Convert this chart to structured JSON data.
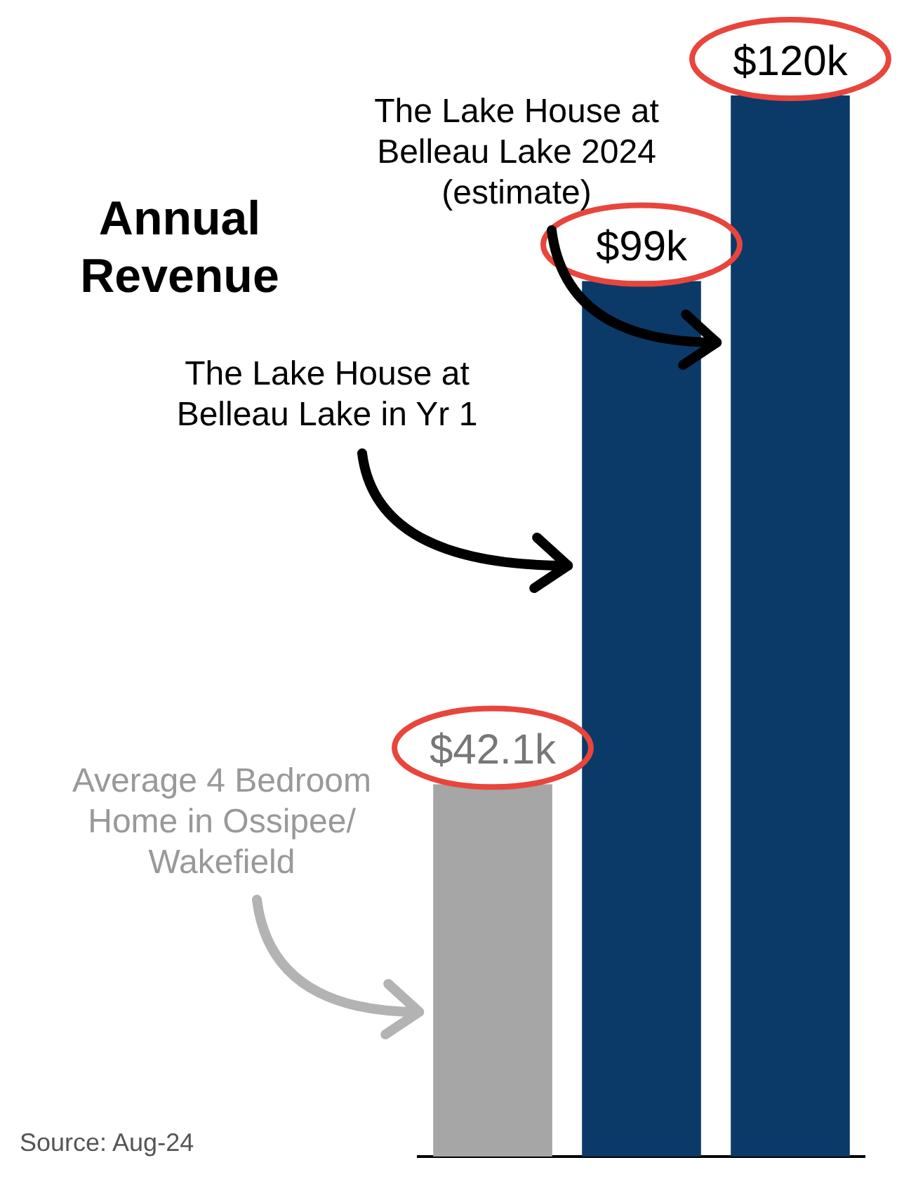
{
  "chart_data": {
    "type": "bar",
    "categories": [
      null,
      null,
      null
    ],
    "values": [
      42.1,
      99,
      120
    ],
    "colors": [
      "#a6a6a6",
      "#0b3a68",
      "#0b3a68"
    ],
    "value_labels": [
      "$42.1k",
      "$99k",
      "$120k"
    ],
    "annotations": [
      "Annual Revenue",
      "The Lake House at Belleau Lake 2024 (estimate)",
      "The Lake House at Belleau Lake in Yr 1",
      "Average 4 Bedroom Home in Ossipee/ Wakefield",
      "Source: Aug-24"
    ],
    "legend": false,
    "grid": false
  }
}
